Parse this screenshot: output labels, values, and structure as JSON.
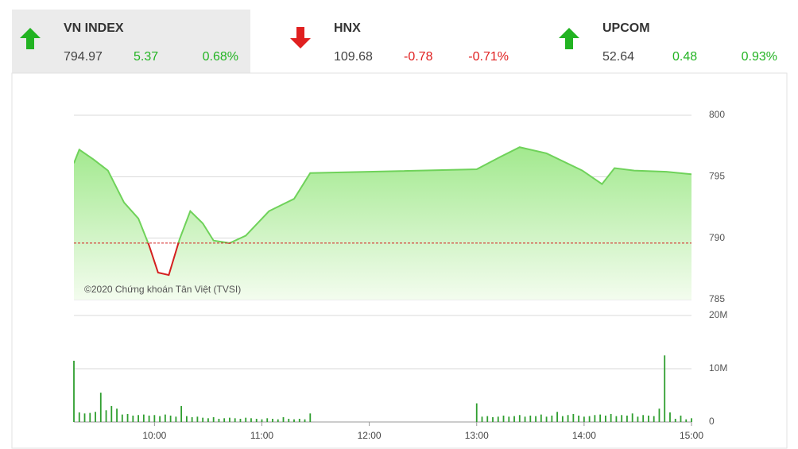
{
  "header": {
    "indices": [
      {
        "name": "VN INDEX",
        "value": "794.97",
        "change": "5.37",
        "percent": "0.68%",
        "direction": "up"
      },
      {
        "name": "HNX",
        "value": "109.68",
        "change": "-0.78",
        "percent": "-0.71%",
        "direction": "down"
      },
      {
        "name": "UPCOM",
        "value": "52.64",
        "change": "0.48",
        "percent": "0.93%",
        "direction": "up"
      }
    ]
  },
  "chart_data": [
    {
      "type": "line",
      "annotation": "©2020 Chứng khoán Tân Việt (TVSI)",
      "x": [
        555,
        558,
        566,
        574,
        583,
        591,
        597,
        602,
        608,
        614,
        620,
        627,
        633,
        642,
        651,
        664,
        678,
        687,
        780,
        793,
        804,
        819,
        839,
        850,
        857,
        868,
        886,
        900
      ],
      "values": [
        796.1,
        797.2,
        796.4,
        795.5,
        792.9,
        791.6,
        789.4,
        787.2,
        787.0,
        789.9,
        792.2,
        791.2,
        789.8,
        789.6,
        790.2,
        792.2,
        793.2,
        795.3,
        795.6,
        796.6,
        797.4,
        796.9,
        795.5,
        794.4,
        795.7,
        795.5,
        795.4,
        795.2
      ],
      "reference": 789.6,
      "color": "#6fd25a",
      "below_color": "#d42020",
      "xlim": [
        555,
        900
      ],
      "ylim": [
        785,
        800
      ],
      "yticks": [
        785,
        790,
        795,
        800
      ],
      "grid": true
    },
    {
      "type": "bar",
      "color": "#2f9e2f",
      "x": [
        555,
        558,
        561,
        564,
        567,
        570,
        573,
        576,
        579,
        582,
        585,
        588,
        591,
        594,
        597,
        600,
        603,
        606,
        609,
        612,
        615,
        618,
        621,
        624,
        627,
        630,
        633,
        636,
        639,
        642,
        645,
        648,
        651,
        654,
        657,
        660,
        663,
        666,
        669,
        672,
        675,
        678,
        681,
        684,
        687,
        780,
        783,
        786,
        789,
        792,
        795,
        798,
        801,
        804,
        807,
        810,
        813,
        816,
        819,
        822,
        825,
        828,
        831,
        834,
        837,
        840,
        843,
        846,
        849,
        852,
        855,
        858,
        861,
        864,
        867,
        870,
        873,
        876,
        879,
        882,
        885,
        888,
        891,
        894,
        897,
        900
      ],
      "values": [
        11500000,
        1800000,
        1600000,
        1700000,
        1900000,
        5500000,
        2200000,
        3000000,
        2500000,
        1400000,
        1500000,
        1200000,
        1300000,
        1400000,
        1200000,
        1300000,
        1100000,
        1400000,
        1200000,
        1000000,
        3000000,
        1100000,
        900000,
        1000000,
        800000,
        700000,
        900000,
        600000,
        700000,
        800000,
        700000,
        600000,
        800000,
        700000,
        600000,
        500000,
        700000,
        600000,
        500000,
        900000,
        600000,
        500000,
        600000,
        500000,
        1600000,
        3500000,
        1000000,
        1100000,
        900000,
        1000000,
        1200000,
        1000000,
        1100000,
        1300000,
        1000000,
        1200000,
        1100000,
        1400000,
        1000000,
        1200000,
        1900000,
        1100000,
        1300000,
        1500000,
        1200000,
        1000000,
        1100000,
        1300000,
        1400000,
        1200000,
        1500000,
        1100000,
        1300000,
        1200000,
        1600000,
        1000000,
        1300000,
        1200000,
        1100000,
        2500000,
        12500000,
        1800000,
        600000,
        1200000,
        500000,
        700000
      ],
      "xlim": [
        555,
        900
      ],
      "xticks": [
        {
          "value": 600,
          "label": "10:00"
        },
        {
          "value": 660,
          "label": "11:00"
        },
        {
          "value": 720,
          "label": "12:00"
        },
        {
          "value": 780,
          "label": "13:00"
        },
        {
          "value": 840,
          "label": "14:00"
        },
        {
          "value": 900,
          "label": "15:00"
        }
      ],
      "ylim": [
        0,
        20000000
      ],
      "yticks": [
        0,
        {
          "value": 10000000,
          "label": "10M"
        },
        {
          "value": 20000000,
          "label": "20M"
        }
      ],
      "grid": true
    }
  ]
}
